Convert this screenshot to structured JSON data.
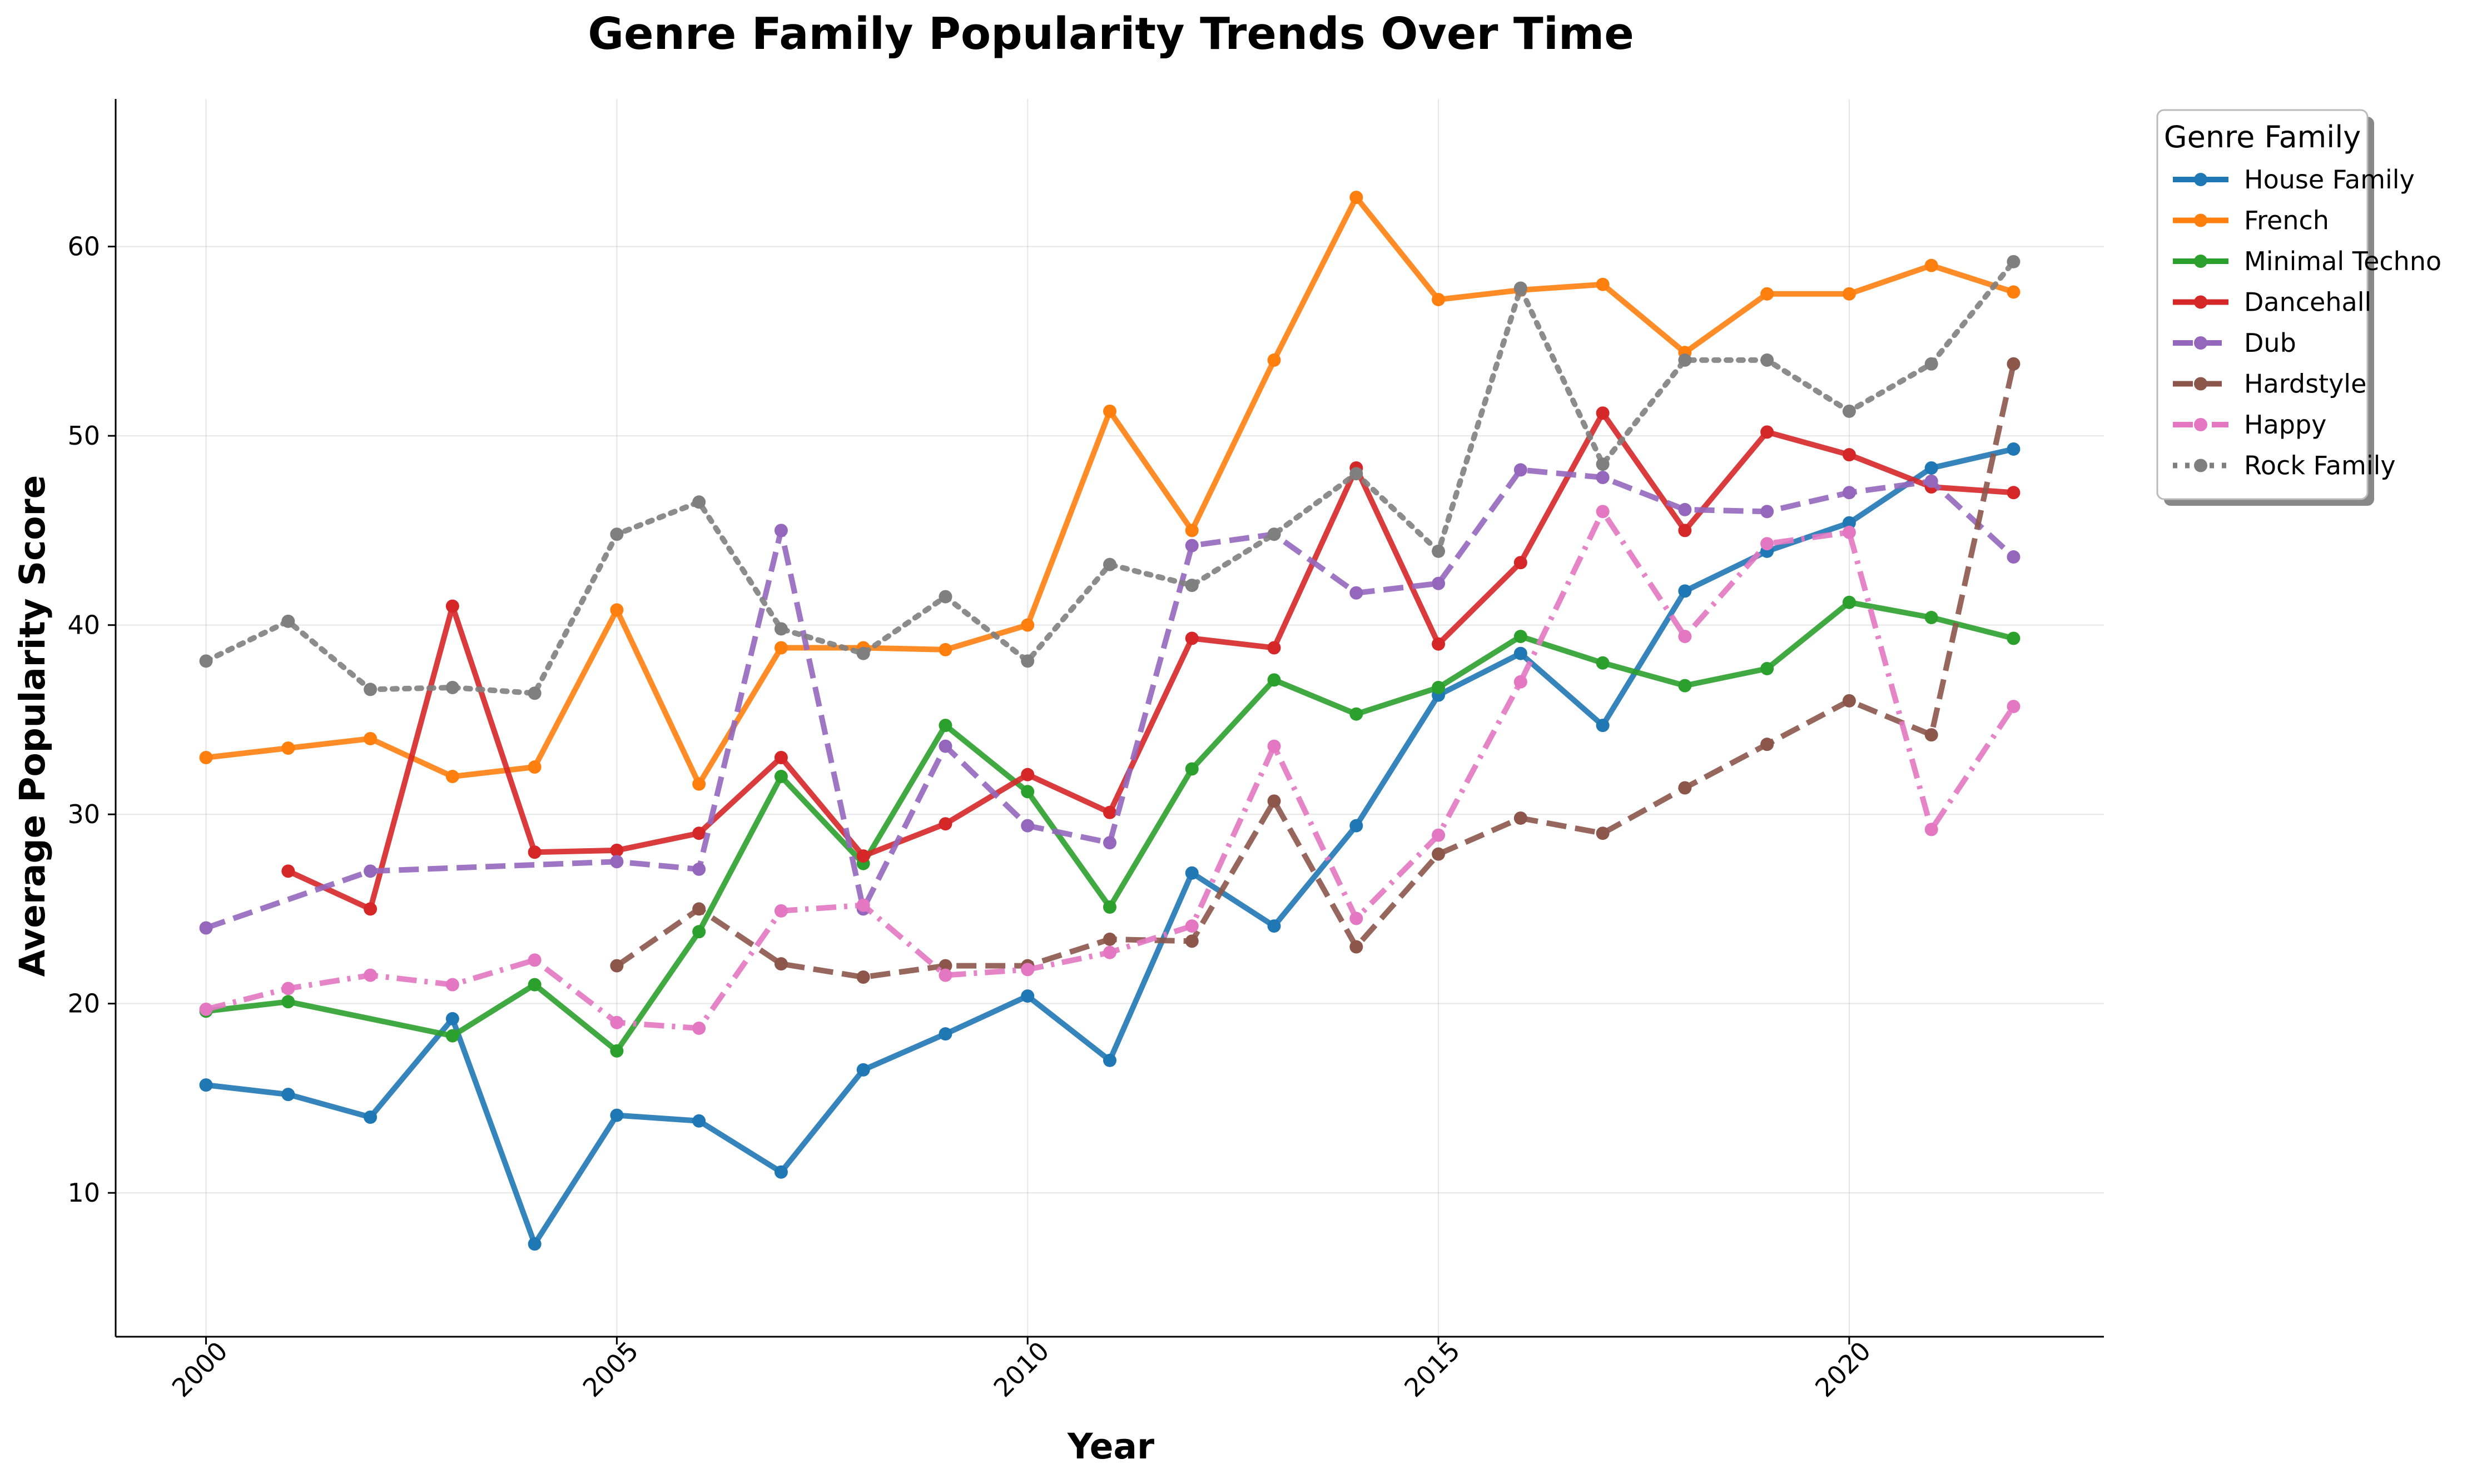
{
  "chart_data": {
    "type": "line",
    "title": "Genre Family Popularity Trends Over Time",
    "xlabel": "Year",
    "ylabel": "Average Popularity Score",
    "xlim": [
      1998.9,
      2023.1
    ],
    "ylim": [
      2.4,
      67.8
    ],
    "xticks": [
      2000,
      2005,
      2010,
      2015,
      2020
    ],
    "yticks": [
      10,
      20,
      30,
      40,
      50,
      60
    ],
    "grid": true,
    "legend": {
      "title": "Genre Family",
      "placement": "outside-top-right"
    },
    "series": [
      {
        "name": "House Family",
        "color": "#1f77b4",
        "style": "solid",
        "x": [
          2000,
          2001,
          2002,
          2003,
          2004,
          2005,
          2006,
          2007,
          2008,
          2009,
          2010,
          2011,
          2012,
          2013,
          2014,
          2015,
          2016,
          2017,
          2018,
          2019,
          2020,
          2021,
          2022
        ],
        "y": [
          15.7,
          15.2,
          14.0,
          19.2,
          7.3,
          14.1,
          13.8,
          11.1,
          16.5,
          18.4,
          20.4,
          17.0,
          26.9,
          24.1,
          29.4,
          36.3,
          38.5,
          34.7,
          41.8,
          43.9,
          45.4,
          48.3,
          49.3
        ]
      },
      {
        "name": "French",
        "color": "#ff7f0e",
        "style": "solid",
        "x": [
          2000,
          2001,
          2002,
          2003,
          2004,
          2005,
          2006,
          2007,
          2008,
          2009,
          2010,
          2011,
          2012,
          2013,
          2014,
          2015,
          2016,
          2017,
          2018,
          2019,
          2020,
          2021,
          2022
        ],
        "y": [
          33.0,
          33.5,
          34.0,
          32.0,
          32.5,
          40.8,
          31.6,
          38.8,
          38.8,
          38.7,
          40.0,
          51.3,
          45.0,
          54.0,
          62.6,
          57.2,
          57.7,
          58.0,
          54.4,
          57.5,
          57.5,
          59.0,
          57.6
        ]
      },
      {
        "name": "Minimal Techno",
        "color": "#2ca02c",
        "style": "solid",
        "x": [
          2000,
          2001,
          2003,
          2004,
          2005,
          2006,
          2007,
          2008,
          2009,
          2010,
          2011,
          2012,
          2013,
          2014,
          2015,
          2016,
          2017,
          2018,
          2019,
          2020,
          2021,
          2022
        ],
        "y": [
          19.6,
          20.1,
          18.3,
          21.0,
          17.5,
          23.8,
          32.0,
          27.4,
          34.7,
          31.2,
          25.1,
          32.4,
          37.1,
          35.3,
          36.7,
          39.4,
          38.0,
          36.8,
          37.7,
          41.2,
          40.4,
          39.3
        ]
      },
      {
        "name": "Dancehall",
        "color": "#d62728",
        "style": "solid",
        "x": [
          2001,
          2002,
          2003,
          2004,
          2005,
          2006,
          2007,
          2008,
          2009,
          2010,
          2011,
          2012,
          2013,
          2014,
          2015,
          2016,
          2017,
          2018,
          2019,
          2020,
          2021,
          2022
        ],
        "y": [
          27.0,
          25.0,
          41.0,
          28.0,
          28.1,
          29.0,
          33.0,
          27.8,
          29.5,
          32.1,
          30.1,
          39.3,
          38.8,
          48.3,
          39.0,
          43.3,
          51.2,
          45.0,
          50.2,
          49.0,
          47.3,
          47.0
        ]
      },
      {
        "name": "Dub",
        "color": "#9467bd",
        "style": "dashed",
        "x": [
          2000,
          2002,
          2005,
          2006,
          2007,
          2008,
          2009,
          2010,
          2011,
          2012,
          2013,
          2014,
          2015,
          2016,
          2017,
          2018,
          2019,
          2020,
          2021,
          2022
        ],
        "y": [
          24.0,
          27.0,
          27.5,
          27.1,
          45.0,
          25.0,
          33.6,
          29.4,
          28.5,
          44.2,
          44.8,
          41.7,
          42.2,
          48.2,
          47.8,
          46.1,
          46.0,
          47.0,
          47.6,
          43.6
        ]
      },
      {
        "name": "Hardstyle",
        "color": "#8c564b",
        "style": "dashed",
        "x": [
          2005,
          2006,
          2007,
          2008,
          2009,
          2010,
          2011,
          2012,
          2013,
          2014,
          2015,
          2016,
          2017,
          2018,
          2019,
          2020,
          2021,
          2022
        ],
        "y": [
          22.0,
          25.0,
          22.1,
          21.4,
          22.0,
          22.0,
          23.4,
          23.3,
          30.7,
          23.0,
          27.9,
          29.8,
          29.0,
          31.4,
          33.7,
          36.0,
          34.2,
          53.8
        ]
      },
      {
        "name": "Happy",
        "color": "#e377c2",
        "style": "dashdot",
        "x": [
          2000,
          2001,
          2002,
          2003,
          2004,
          2005,
          2006,
          2007,
          2008,
          2009,
          2010,
          2011,
          2012,
          2013,
          2014,
          2015,
          2016,
          2017,
          2018,
          2019,
          2020,
          2021,
          2022
        ],
        "y": [
          19.7,
          20.8,
          21.5,
          21.0,
          22.3,
          19.0,
          18.7,
          24.9,
          25.2,
          21.5,
          21.8,
          22.7,
          24.1,
          33.6,
          24.5,
          28.9,
          37.0,
          46.0,
          39.4,
          44.3,
          44.9,
          29.2,
          35.7
        ]
      },
      {
        "name": "Rock Family",
        "color": "#7f7f7f",
        "style": "dotted",
        "x": [
          2000,
          2001,
          2002,
          2003,
          2004,
          2005,
          2006,
          2007,
          2008,
          2009,
          2010,
          2011,
          2012,
          2013,
          2014,
          2015,
          2016,
          2017,
          2018,
          2019,
          2020,
          2021,
          2022
        ],
        "y": [
          38.1,
          40.2,
          36.6,
          36.7,
          36.4,
          44.8,
          46.5,
          39.8,
          38.5,
          41.5,
          38.1,
          43.2,
          42.1,
          44.8,
          48.0,
          43.9,
          57.8,
          48.5,
          54.0,
          54.0,
          51.3,
          53.8,
          59.2
        ]
      }
    ]
  }
}
